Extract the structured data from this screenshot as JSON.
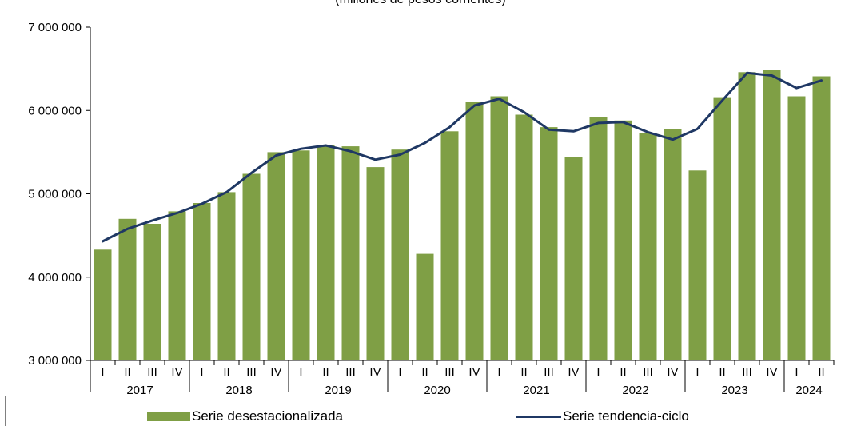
{
  "chart_data": {
    "type": "bar",
    "subtitle": "(millones de pesos corrientes)",
    "categories": [
      "I",
      "II",
      "III",
      "IV",
      "I",
      "II",
      "III",
      "IV",
      "I",
      "II",
      "III",
      "IV",
      "I",
      "II",
      "III",
      "IV",
      "I",
      "II",
      "III",
      "IV",
      "I",
      "II",
      "III",
      "IV",
      "I",
      "II",
      "III",
      "IV",
      "I",
      "II"
    ],
    "years": [
      "2017",
      "2018",
      "2019",
      "2020",
      "2021",
      "2022",
      "2023",
      "2024"
    ],
    "series": [
      {
        "name": "Serie desestacionalizada",
        "type": "bar",
        "color": "#7f9f45",
        "values": [
          4330000,
          4700000,
          4640000,
          4790000,
          4890000,
          5020000,
          5240000,
          5500000,
          5520000,
          5590000,
          5570000,
          5320000,
          5530000,
          4280000,
          5750000,
          6100000,
          6170000,
          5950000,
          5800000,
          5440000,
          5920000,
          5880000,
          5730000,
          5780000,
          5280000,
          6160000,
          6460000,
          6490000,
          6170000,
          6410000
        ]
      },
      {
        "name": "Serie tendencia-ciclo",
        "type": "line",
        "color": "#1f3864",
        "values": [
          4430000,
          4580000,
          4680000,
          4770000,
          4880000,
          5020000,
          5250000,
          5460000,
          5540000,
          5580000,
          5510000,
          5410000,
          5470000,
          5610000,
          5800000,
          6060000,
          6140000,
          5980000,
          5770000,
          5750000,
          5850000,
          5860000,
          5740000,
          5650000,
          5780000,
          6120000,
          6450000,
          6420000,
          6270000,
          6360000
        ]
      }
    ],
    "ylim": [
      3000000,
      7000000
    ],
    "yticks": [
      3000000,
      4000000,
      5000000,
      6000000,
      7000000
    ],
    "ytick_labels": [
      "3 000 000",
      "4 000 000",
      "5 000 000",
      "6 000 000",
      "7 000 000"
    ],
    "grid": false,
    "legend_position": "bottom"
  }
}
